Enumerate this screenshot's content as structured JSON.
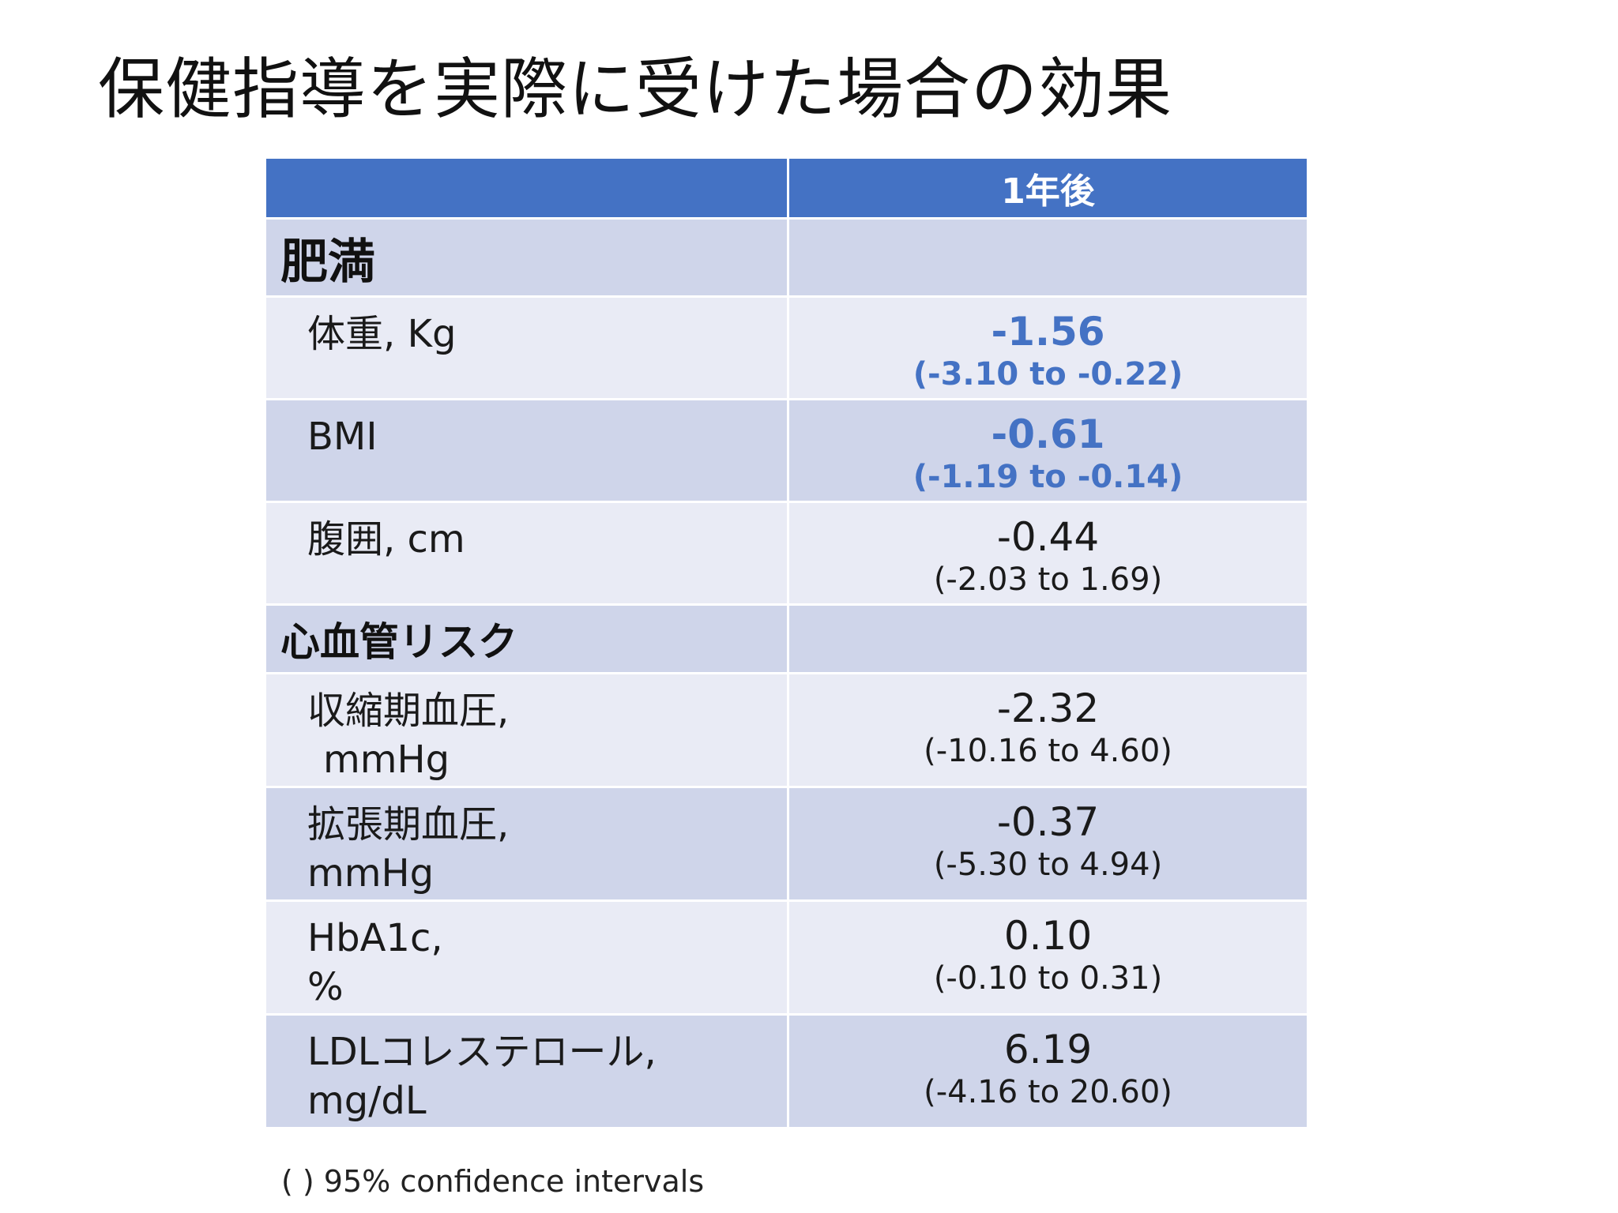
{
  "title": "保健指導を実際に受けた場合の効果",
  "table": {
    "header": {
      "col1": "",
      "col2": "1年後"
    },
    "sections": [
      {
        "label": "肥満",
        "rows": [
          {
            "label_line1": "体重, Kg",
            "label_line2": "",
            "estimate": "-1.56",
            "ci": "(-3.10 to -0.22)",
            "significant": true
          },
          {
            "label_line1": "BMI",
            "label_line2": "",
            "estimate": "-0.61",
            "ci": "(-1.19 to -0.14)",
            "significant": true
          },
          {
            "label_line1": "腹囲, cm",
            "label_line2": "",
            "estimate": "-0.44",
            "ci": "(-2.03 to 1.69)",
            "significant": false
          }
        ]
      },
      {
        "label": "心血管リスク",
        "rows": [
          {
            "label_line1": "収縮期血圧,",
            "label_line2": " mmHg",
            "estimate": "-2.32",
            "ci": "(-10.16 to 4.60)",
            "significant": false
          },
          {
            "label_line1": "拡張期血圧,",
            "label_line2": "mmHg",
            "estimate": "-0.37",
            "ci": "(-5.30 to 4.94)",
            "significant": false
          },
          {
            "label_line1": "HbA1c,",
            "label_line2": "%",
            "estimate": "0.10",
            "ci": "(-0.10 to 0.31)",
            "significant": false
          },
          {
            "label_line1": "LDLコレステロール,",
            "label_line2": "mg/dL",
            "estimate": "6.19",
            "ci": "(-4.16 to 20.60)",
            "significant": false
          }
        ]
      }
    ]
  },
  "footnote": "( ) 95% confidence intervals",
  "colors": {
    "header_bg": "#4472c4",
    "row_dark": "#cfd5ea",
    "row_light": "#e9ebf5",
    "significant_text": "#4472c4"
  }
}
